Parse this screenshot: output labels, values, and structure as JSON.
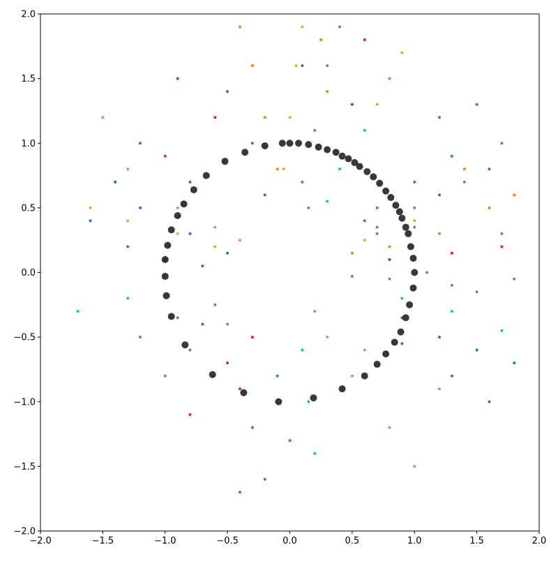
{
  "chart_data": {
    "type": "scatter",
    "xlim": [
      -2,
      2
    ],
    "ylim": [
      -2,
      2
    ],
    "xticks": [
      {
        "value": -2,
        "label": "−2.0"
      },
      {
        "value": -1.5,
        "label": "−1.5"
      },
      {
        "value": -1,
        "label": "−1.0"
      },
      {
        "value": -0.5,
        "label": "−0.5"
      },
      {
        "value": 0,
        "label": "0.0"
      },
      {
        "value": 0.5,
        "label": "0.5"
      },
      {
        "value": 1,
        "label": "1.0"
      },
      {
        "value": 1.5,
        "label": "1.5"
      },
      {
        "value": 2,
        "label": "2.0"
      }
    ],
    "yticks": [
      {
        "value": -2,
        "label": "−2.0"
      },
      {
        "value": -1.5,
        "label": "−1.5"
      },
      {
        "value": -1,
        "label": "−1.0"
      },
      {
        "value": -0.5,
        "label": "−0.5"
      },
      {
        "value": 0,
        "label": "0.0"
      },
      {
        "value": 0.5,
        "label": "0.5"
      },
      {
        "value": 1,
        "label": "1.0"
      },
      {
        "value": 1.5,
        "label": "1.5"
      },
      {
        "value": 2,
        "label": "2.0"
      }
    ],
    "series": [
      {
        "color": "#1f77b4",
        "x": [
          -1.2,
          -0.8,
          -1.4,
          -0.5,
          -1.0,
          -1.6,
          1.2,
          1.5,
          0.9,
          1.8,
          -1.3,
          -0.7
        ],
        "values": [
          0.5,
          0.3,
          0.7,
          0.15,
          0.1,
          0.4,
          -0.5,
          -0.6,
          -0.35,
          -0.7,
          0.2,
          0.05
        ]
      },
      {
        "color": "#ff7f0e",
        "x": [
          -0.2,
          -0.3,
          -0.1,
          0.3,
          0.25,
          0.8,
          1.2,
          1.6,
          1.4,
          0.5,
          -0.4,
          1.8
        ],
        "values": [
          1.2,
          1.6,
          0.8,
          1.4,
          1.8,
          0.2,
          0.3,
          0.5,
          0.8,
          0.15,
          1.9,
          0.6
        ]
      },
      {
        "color": "#2ca02c",
        "x": [
          -0.1,
          0,
          -0.2,
          -0.3,
          0.1,
          -0.4,
          0.6,
          1.0,
          1.3,
          1.5,
          0.7,
          1.2
        ],
        "values": [
          -0.8,
          -1.3,
          -1.6,
          -1.2,
          -0.6,
          -1.7,
          0.4,
          0.7,
          0.9,
          1.3,
          0.5,
          1.2
        ]
      },
      {
        "color": "#d62728",
        "x": [
          0.8,
          1.3,
          1.7,
          -0.5,
          -0.8,
          -0.3,
          -0.6,
          -0.9,
          0.5,
          0.6,
          -1.0,
          -0.4
        ],
        "values": [
          0.1,
          0.15,
          0.2,
          -0.7,
          -1.1,
          -0.5,
          1.2,
          1.5,
          1.3,
          1.8,
          0.9,
          -0.9
        ]
      },
      {
        "color": "#9467bd",
        "x": [
          0.2,
          0.3,
          0.1,
          1.0,
          1.4,
          0.7,
          -0.9,
          -1.2,
          -0.6,
          0.4,
          1.7,
          0.15
        ],
        "values": [
          1.1,
          1.6,
          0.7,
          0.5,
          0.7,
          0.35,
          -0.35,
          -0.5,
          -0.25,
          1.9,
          1.0,
          0.5
        ]
      },
      {
        "color": "#8c564b",
        "x": [
          -0.3,
          -0.5,
          -0.2,
          1.3,
          1.6,
          0.9,
          -1.2,
          -0.8,
          1.2,
          1.6,
          -0.7,
          0.1
        ],
        "values": [
          1.0,
          1.4,
          0.6,
          -0.8,
          -1.0,
          -0.55,
          1.0,
          0.7,
          0.6,
          0.8,
          -0.4,
          1.6
        ]
      },
      {
        "color": "#e377c2",
        "x": [
          0.5,
          0.8,
          1.0,
          0.3,
          -0.9,
          -0.6,
          -1.3,
          0.2,
          -1.5,
          1.2,
          0.6,
          -0.4
        ],
        "values": [
          -0.8,
          -1.2,
          -1.5,
          -0.5,
          0.5,
          0.35,
          0.8,
          -0.3,
          1.2,
          -0.9,
          -0.6,
          0.25
        ]
      },
      {
        "color": "#7f7f7f",
        "x": [
          0.8,
          1.3,
          1.8,
          1.1,
          -0.5,
          -0.8,
          -1.0,
          0.5,
          1.5,
          0.7,
          1.0,
          1.7
        ],
        "values": [
          -0.05,
          -0.1,
          -0.05,
          0.0,
          -0.4,
          -0.6,
          -0.8,
          -0.03,
          -0.15,
          0.3,
          0.35,
          0.3
        ]
      },
      {
        "color": "#bcbd22",
        "x": [
          0,
          0.05,
          -0.05,
          0.6,
          1.0,
          -0.9,
          -1.3,
          -1.6,
          0.7,
          0.9,
          -0.6,
          0.1
        ],
        "values": [
          1.2,
          1.6,
          0.8,
          0.25,
          0.4,
          0.3,
          0.4,
          0.5,
          1.3,
          1.7,
          0.2,
          1.9
        ]
      },
      {
        "color": "#17becf",
        "x": [
          0.1,
          0.15,
          0.2,
          0.4,
          0.6,
          0.8,
          0.9,
          1.3,
          1.7,
          -1.3,
          0.3,
          -1.7
        ],
        "values": [
          -0.6,
          -1.0,
          -1.4,
          0.8,
          1.1,
          1.5,
          -0.2,
          -0.3,
          -0.45,
          -0.2,
          0.55,
          -0.3
        ]
      },
      {
        "color": "#222222",
        "x": [
          0.0,
          0.07,
          0.15,
          0.23,
          0.3,
          0.37,
          0.42,
          0.47,
          0.52,
          0.56,
          0.62,
          0.67,
          0.72,
          0.77,
          0.81,
          0.85,
          0.88,
          0.9,
          0.93,
          0.95,
          0.97,
          0.99,
          1.0,
          0.99,
          0.96,
          0.93,
          0.89,
          0.84,
          0.77,
          0.7,
          0.6,
          0.42,
          0.19,
          -0.09,
          -0.37,
          -0.62,
          -0.84,
          -0.95,
          -0.99,
          -1.0,
          -1.0,
          -0.98,
          -0.95,
          -0.9,
          -0.85,
          -0.77,
          -0.67,
          -0.52,
          -0.36,
          -0.2,
          -0.06
        ],
        "values": [
          1.0,
          1.0,
          0.99,
          0.97,
          0.95,
          0.93,
          0.9,
          0.88,
          0.85,
          0.82,
          0.78,
          0.74,
          0.69,
          0.63,
          0.58,
          0.52,
          0.47,
          0.42,
          0.35,
          0.3,
          0.2,
          0.11,
          0.0,
          -0.12,
          -0.25,
          -0.35,
          -0.46,
          -0.54,
          -0.63,
          -0.71,
          -0.8,
          -0.9,
          -0.97,
          -1.0,
          -0.93,
          -0.79,
          -0.56,
          -0.34,
          -0.18,
          -0.03,
          0.1,
          0.21,
          0.33,
          0.44,
          0.53,
          0.64,
          0.75,
          0.86,
          0.93,
          0.98,
          1.0
        ]
      }
    ]
  }
}
